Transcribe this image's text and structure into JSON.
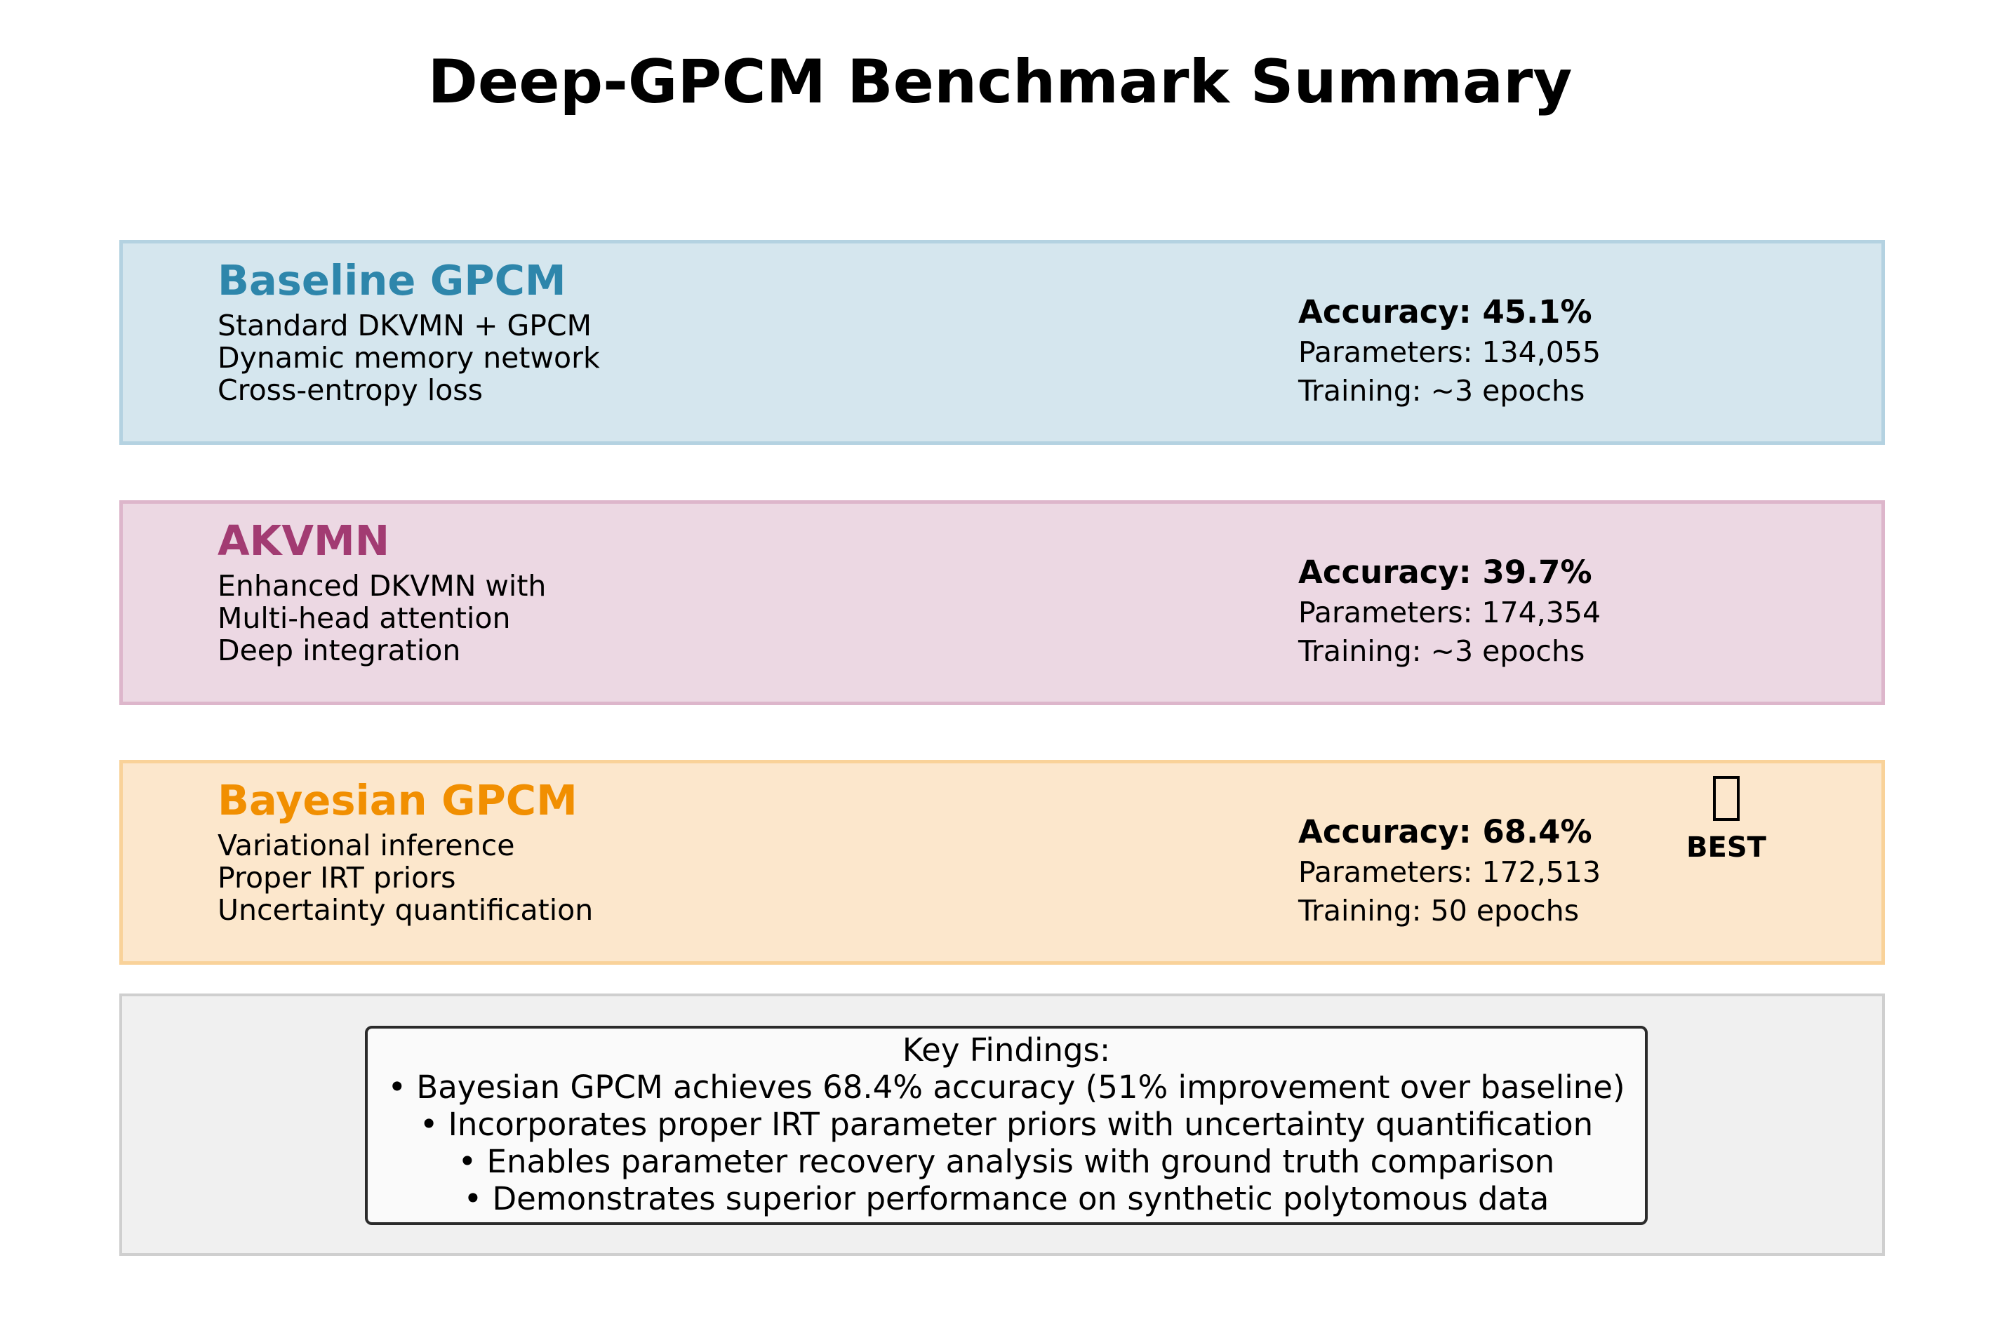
{
  "title": "Deep-GPCM Benchmark Summary",
  "models": [
    {
      "name": "Baseline GPCM",
      "name_color": "#2e86ab",
      "fill_color": "#d5e6ee",
      "border_color": "#b4d2e1",
      "description": [
        "Standard DKVMN + GPCM",
        "Dynamic memory network",
        "Cross-entropy loss"
      ],
      "accuracy": "Accuracy: 45.1%",
      "parameters": "Parameters: 134,055",
      "training": "Training: ~3 epochs"
    },
    {
      "name": "AKVMN",
      "name_color": "#a23b72",
      "fill_color": "#ecd8e3",
      "border_color": "#ddb6cb",
      "description": [
        "Enhanced DKVMN with",
        "Multi-head attention",
        "Deep integration"
      ],
      "accuracy": "Accuracy: 39.7%",
      "parameters": "Parameters: 174,354",
      "training": "Training: ~3 epochs"
    },
    {
      "name": "Bayesian GPCM",
      "name_color": "#f18f01",
      "fill_color": "#fce7cc",
      "border_color": "#f9d299",
      "description": [
        "Variational inference",
        "Proper IRT priors",
        "Uncertainty quantification"
      ],
      "accuracy": "Accuracy: 68.4%",
      "parameters": "Parameters: 172,513",
      "training": "Training: 50 epochs",
      "badge": {
        "icon": "trophy-icon",
        "label": "BEST"
      }
    }
  ],
  "findings": {
    "lines": [
      "Key Findings:",
      "• Bayesian GPCM achieves 68.4% accuracy (51% improvement over baseline)",
      "• Incorporates proper IRT parameter priors with uncertainty quantification",
      "• Enables parameter recovery analysis with ground truth comparison",
      "• Demonstrates superior performance on synthetic polytomous data"
    ]
  }
}
